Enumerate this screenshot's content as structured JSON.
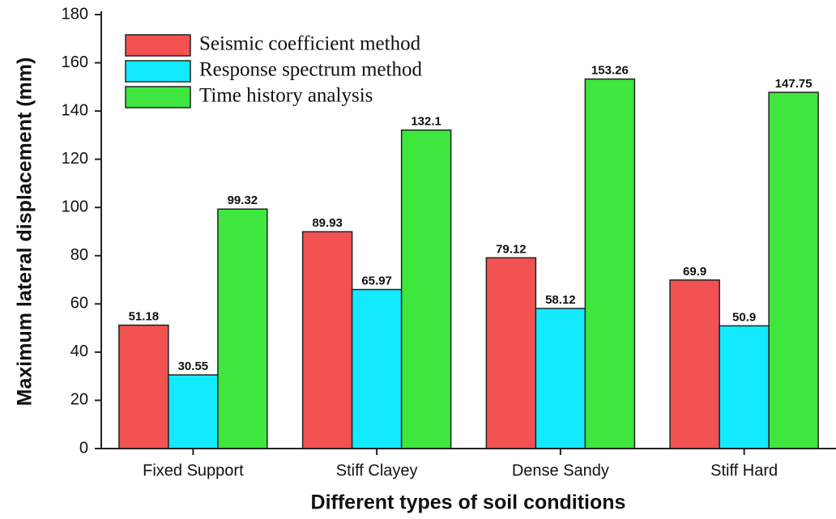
{
  "chart_data": {
    "type": "bar",
    "x_label": "Different types of soil conditions",
    "y_label": "Maximum lateral displacement (mm)",
    "categories": [
      "Fixed Support",
      "Stiff Clayey",
      "Dense Sandy",
      "Stiff Hard"
    ],
    "series": [
      {
        "name": "Seismic coefficient method",
        "color": "#f25252",
        "values": [
          51.18,
          89.93,
          79.12,
          69.9
        ]
      },
      {
        "name": "Response spectrum method",
        "color": "#14eaff",
        "values": [
          30.55,
          65.97,
          58.12,
          50.9
        ]
      },
      {
        "name": "Time history analysis",
        "color": "#3ee63e",
        "values": [
          99.32,
          132.1,
          153.26,
          147.75
        ]
      }
    ],
    "ylim": [
      0,
      180
    ],
    "yticks": [
      0,
      20,
      40,
      60,
      80,
      100,
      120,
      140,
      160,
      180
    ],
    "legend": "upper left"
  }
}
